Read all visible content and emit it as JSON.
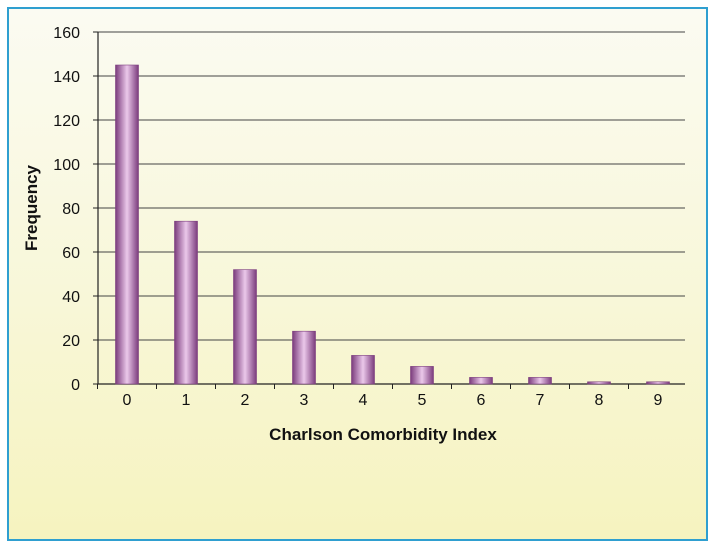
{
  "chart_data": {
    "type": "bar",
    "title": "",
    "xlabel": "Charlson Comorbidity Index",
    "ylabel": "Frequency",
    "categories": [
      "0",
      "1",
      "2",
      "3",
      "4",
      "5",
      "6",
      "7",
      "8",
      "9"
    ],
    "values": [
      145,
      74,
      52,
      24,
      13,
      8,
      3,
      3,
      1,
      1
    ],
    "ylim": [
      0,
      160
    ],
    "yticks": [
      "0",
      "20",
      "40",
      "60",
      "80",
      "100",
      "120",
      "140",
      "160"
    ],
    "grid": "horizontal",
    "legend": "none"
  },
  "colors": {
    "bar_edge": "#7d3f7f",
    "bar_mid": "#e9c3e8",
    "border": "#2f9fd0",
    "grid": "#444444"
  }
}
